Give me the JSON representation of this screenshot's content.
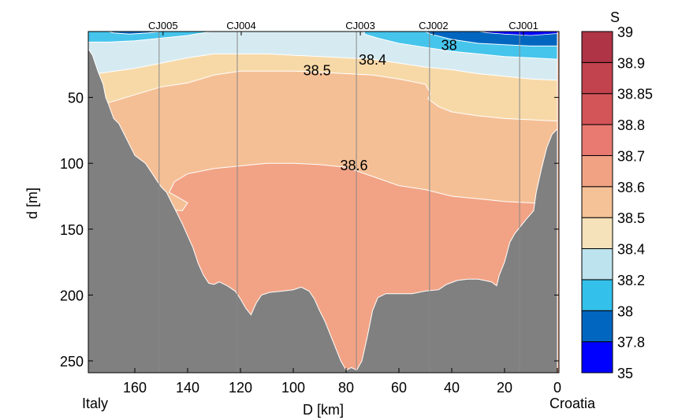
{
  "chart_data": {
    "type": "contour",
    "xlabel": "D [km]",
    "ylabel": "d [m]",
    "xlim": [
      177.6,
      0
    ],
    "ylim": [
      259,
      0
    ],
    "x_ticks": [
      160,
      140,
      120,
      100,
      80,
      60,
      40,
      20,
      0
    ],
    "y_ticks": [
      50,
      100,
      150,
      200,
      250
    ],
    "left_label": "Italy",
    "right_label": "Croatia",
    "stations": [
      {
        "name": "CJ005",
        "x": 150.8
      },
      {
        "name": "CJ004",
        "x": 121.2
      },
      {
        "name": "CJ003",
        "x": 76.1
      },
      {
        "name": "CJ002",
        "x": 48.4
      },
      {
        "name": "CJ001",
        "x": 14.3
      }
    ],
    "contour_labels": [
      {
        "text": "38",
        "x": 41,
        "y": 10
      },
      {
        "text": "38.4",
        "x": 70,
        "y": 21
      },
      {
        "text": "38.5",
        "x": 91,
        "y": 29
      },
      {
        "text": "38.6",
        "x": 77,
        "y": 101
      }
    ],
    "colorbar": {
      "title": "S",
      "levels": [
        "35",
        "37.8",
        "38",
        "38.2",
        "38.4",
        "38.5",
        "38.6",
        "38.7",
        "38.8",
        "38.85",
        "38.9",
        "39"
      ],
      "colors": [
        "#0000ff",
        "#0066c0",
        "#33c0ea",
        "#bde3ee",
        "#f5e2bb",
        "#f5c197",
        "#f1a283",
        "#e87a72",
        "#d35558",
        "#c2434e",
        "#ae3446"
      ]
    },
    "colors": {
      "terrain": "#808080",
      "band_lt_38": "#0066c0",
      "band_38_382": "#45c4ec",
      "band_382_384": "#d6ebf1",
      "band_384_385": "#f7d9a8",
      "band_385_386": "#f5bf95",
      "band_386_387": "#f2a385",
      "band_deep_blue": "#0000ff"
    }
  }
}
